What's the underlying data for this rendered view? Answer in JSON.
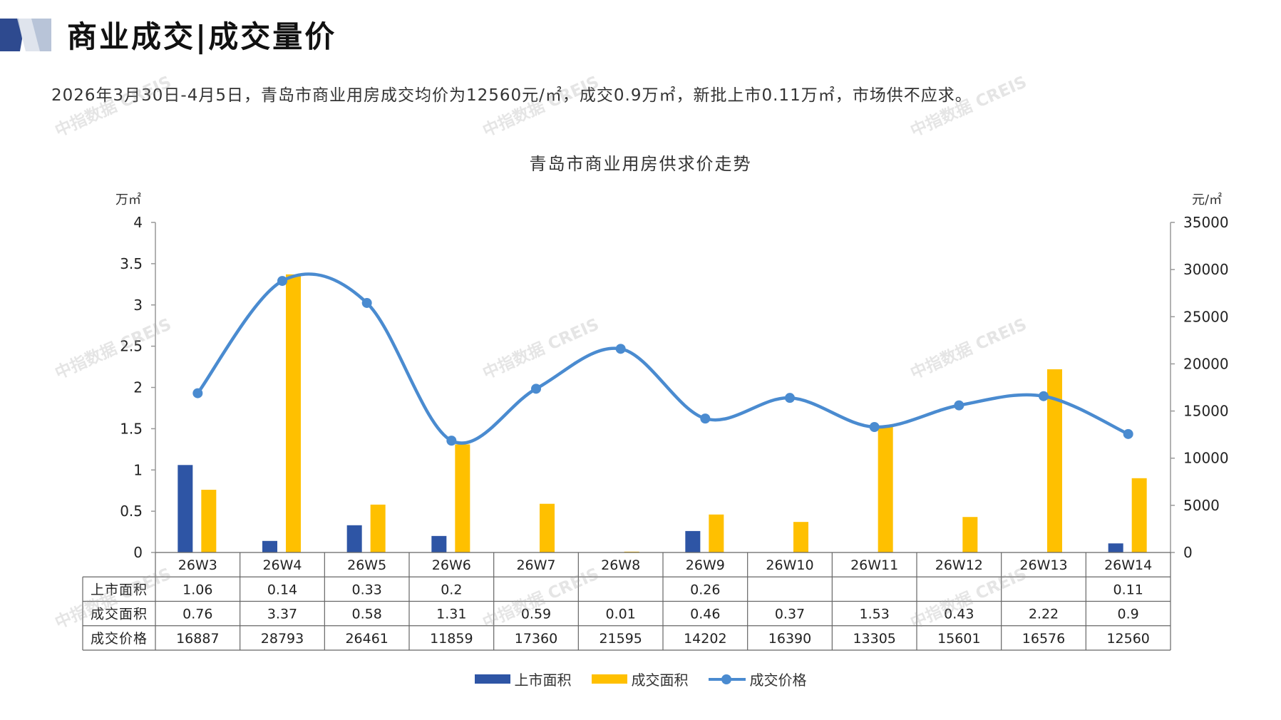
{
  "header": {
    "title": "商业成交|成交量价",
    "summary": "2026年3月30日-4月5日，青岛市商业用房成交均价为12560元/㎡，成交0.9万㎡，新批上市0.11万㎡，市场供不应求。"
  },
  "watermark": "中指数据 CREIS",
  "colors": {
    "supply": "#2E55A5",
    "deal_area": "#FFC000",
    "price": "#4A8BD0",
    "logo_dark": "#2E4A8F",
    "logo_light": "#B8C4D8"
  },
  "chart_data": {
    "type": "bar",
    "title": "青岛市商业用房供求价走势",
    "left_unit": "万㎡",
    "right_unit": "元/㎡",
    "categories": [
      "26W3",
      "26W4",
      "26W5",
      "26W6",
      "26W7",
      "26W8",
      "26W9",
      "26W10",
      "26W11",
      "26W12",
      "26W13",
      "26W14"
    ],
    "ylim": [
      0,
      4
    ],
    "y_ticks": [
      "0",
      "0.5",
      "1",
      "1.5",
      "2",
      "2.5",
      "3",
      "3.5",
      "4"
    ],
    "y2lim": [
      0,
      35000
    ],
    "y2_ticks": [
      "0",
      "5000",
      "10000",
      "15000",
      "20000",
      "25000",
      "30000",
      "35000"
    ],
    "series": [
      {
        "name": "上市面积",
        "type": "bar",
        "axis": "left",
        "values": [
          1.06,
          0.14,
          0.33,
          0.2,
          null,
          null,
          0.26,
          null,
          null,
          null,
          null,
          0.11
        ],
        "labels": [
          "1.06",
          "0.14",
          "0.33",
          "0.2",
          "",
          "",
          "0.26",
          "",
          "",
          "",
          "",
          "0.11"
        ]
      },
      {
        "name": "成交面积",
        "type": "bar",
        "axis": "left",
        "values": [
          0.76,
          3.37,
          0.58,
          1.31,
          0.59,
          0.01,
          0.46,
          0.37,
          1.53,
          0.43,
          2.22,
          0.9
        ],
        "labels": [
          "0.76",
          "3.37",
          "0.58",
          "1.31",
          "0.59",
          "0.01",
          "0.46",
          "0.37",
          "1.53",
          "0.43",
          "2.22",
          "0.9"
        ]
      },
      {
        "name": "成交价格",
        "type": "line",
        "axis": "right",
        "values": [
          16887,
          28793,
          26461,
          11859,
          17360,
          21595,
          14202,
          16390,
          13305,
          15601,
          16576,
          12560
        ],
        "labels": [
          "16887",
          "28793",
          "26461",
          "11859",
          "17360",
          "21595",
          "14202",
          "16390",
          "13305",
          "15601",
          "16576",
          "12560"
        ]
      }
    ],
    "legend": "bottom",
    "grid": false
  }
}
